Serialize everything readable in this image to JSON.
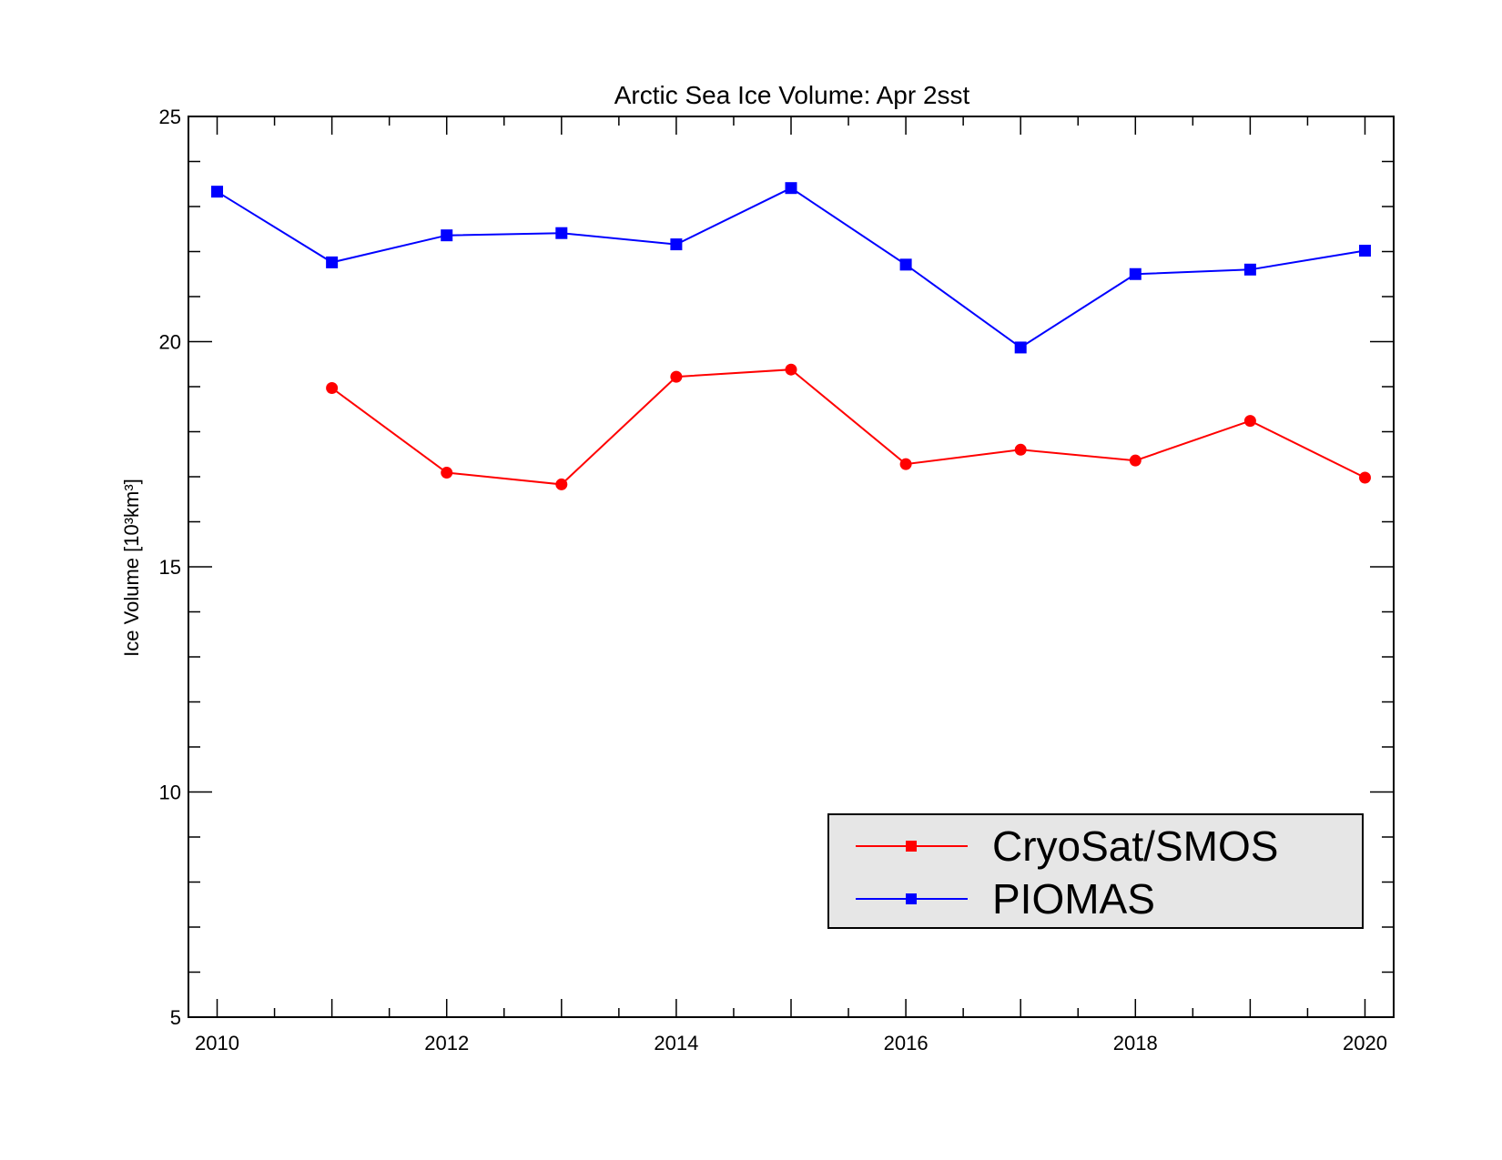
{
  "chart_data": {
    "type": "line",
    "title": "Arctic Sea Ice Volume: Apr 2sst",
    "xlabel": "",
    "ylabel": "Ice Volume [10³km³]",
    "xlim": [
      2009.75,
      2020.25
    ],
    "ylim": [
      5,
      25
    ],
    "x_ticks": [
      2010,
      2012,
      2014,
      2016,
      2018,
      2020
    ],
    "y_ticks": [
      5,
      10,
      15,
      20,
      25
    ],
    "grid": false,
    "legend_position": "bottom-right",
    "series": [
      {
        "name": "CryoSat/SMOS",
        "color": "#ff0000",
        "marker": "circle",
        "legend_marker": "square",
        "x": [
          2011,
          2012,
          2013,
          2014,
          2015,
          2016,
          2017,
          2018,
          2019,
          2020
        ],
        "y": [
          18.97,
          17.09,
          16.83,
          19.22,
          19.38,
          17.28,
          17.6,
          17.36,
          18.24,
          16.98
        ]
      },
      {
        "name": "PIOMAS",
        "color": "#0000ff",
        "marker": "square",
        "legend_marker": "square",
        "x": [
          2010,
          2011,
          2012,
          2013,
          2014,
          2015,
          2016,
          2017,
          2018,
          2019,
          2020
        ],
        "y": [
          23.33,
          21.76,
          22.36,
          22.41,
          22.16,
          23.41,
          21.71,
          19.87,
          21.5,
          21.6,
          22.02
        ]
      }
    ]
  }
}
